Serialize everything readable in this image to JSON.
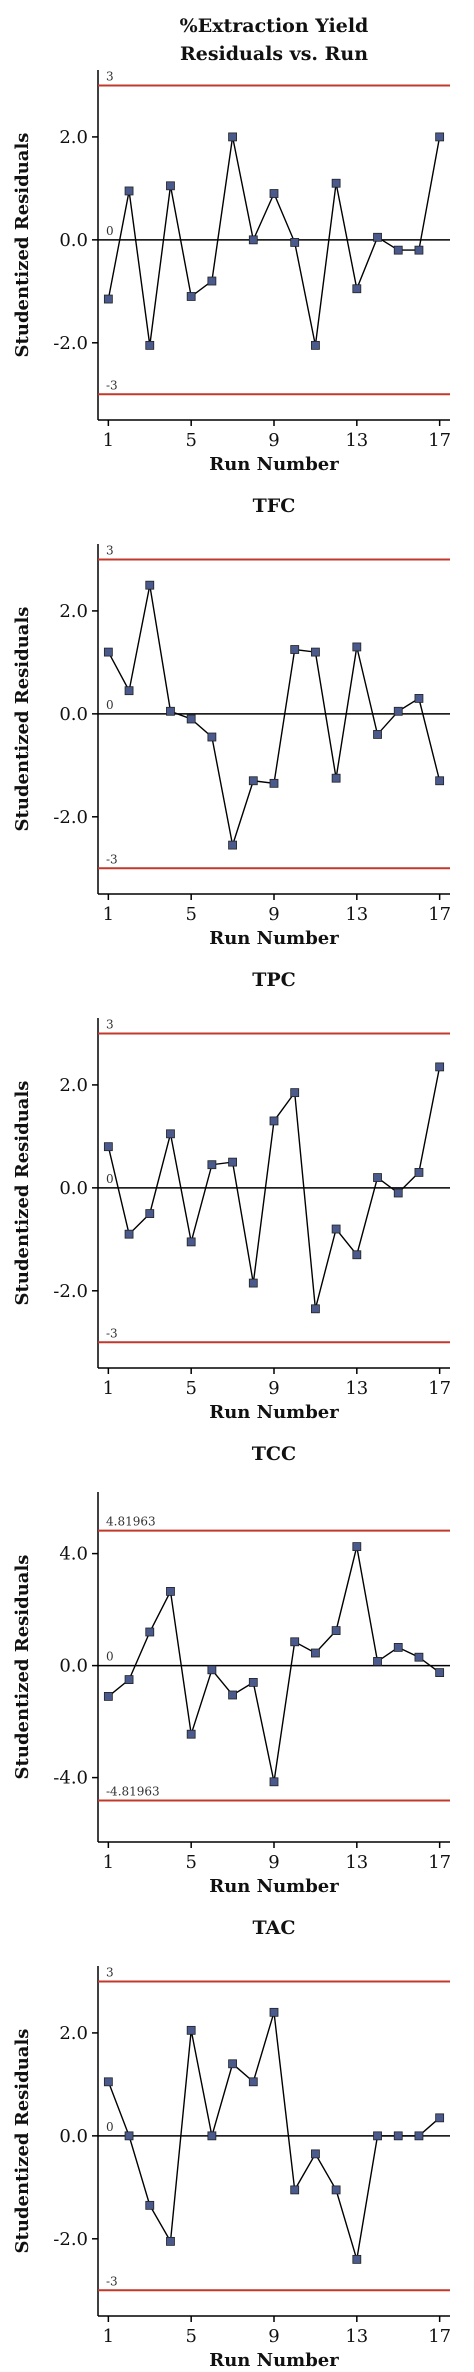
{
  "colors": {
    "limit_line": "#c0392b",
    "zero_line": "#000000",
    "series_line": "#000000",
    "marker_fill": "#4a5a8c",
    "axis": "#000000"
  },
  "chart_data": [
    {
      "type": "line",
      "title_lines": [
        "%Extraction Yield",
        "Residuals vs. Run"
      ],
      "xlabel": "Run Number",
      "ylabel": "Studentized Residuals",
      "xlim": [
        0.5,
        17.5
      ],
      "ylim": [
        -3.5,
        3.3
      ],
      "x_ticks": [
        1,
        5,
        9,
        13,
        17
      ],
      "y_ticks": [
        2.0,
        0.0,
        -2.0
      ],
      "y_tick_labels": [
        "2.0",
        "0.0",
        "-2.0"
      ],
      "ref_lines": [
        {
          "value": 3,
          "label": "3",
          "kind": "limit"
        },
        {
          "value": 0,
          "label": "0",
          "kind": "zero"
        },
        {
          "value": -3,
          "label": "-3",
          "kind": "limit"
        }
      ],
      "x": [
        1,
        2,
        3,
        4,
        5,
        6,
        7,
        8,
        9,
        10,
        11,
        12,
        13,
        14,
        15,
        16,
        17
      ],
      "y": [
        -1.15,
        0.95,
        -2.05,
        1.05,
        -1.1,
        -0.8,
        2.0,
        0.0,
        0.9,
        -0.05,
        -2.05,
        1.1,
        -0.95,
        0.05,
        -0.2,
        -0.2,
        2.0
      ]
    },
    {
      "type": "line",
      "title_lines": [
        "TFC"
      ],
      "xlabel": "Run Number",
      "ylabel": "Studentized Residuals",
      "xlim": [
        0.5,
        17.5
      ],
      "ylim": [
        -3.5,
        3.3
      ],
      "x_ticks": [
        1,
        5,
        9,
        13,
        17
      ],
      "y_ticks": [
        2.0,
        0.0,
        -2.0
      ],
      "y_tick_labels": [
        "2.0",
        "0.0",
        "-2.0"
      ],
      "ref_lines": [
        {
          "value": 3,
          "label": "3",
          "kind": "limit"
        },
        {
          "value": 0,
          "label": "0",
          "kind": "zero"
        },
        {
          "value": -3,
          "label": "-3",
          "kind": "limit"
        }
      ],
      "x": [
        1,
        2,
        3,
        4,
        5,
        6,
        7,
        8,
        9,
        10,
        11,
        12,
        13,
        14,
        15,
        16,
        17
      ],
      "y": [
        1.2,
        0.45,
        2.5,
        0.05,
        -0.1,
        -0.45,
        -2.55,
        -1.3,
        -1.35,
        1.25,
        1.2,
        -1.25,
        1.3,
        -0.4,
        0.05,
        0.3,
        -1.3
      ]
    },
    {
      "type": "line",
      "title_lines": [
        "TPC"
      ],
      "xlabel": "Run Number",
      "ylabel": "Studentized Residuals",
      "xlim": [
        0.5,
        17.5
      ],
      "ylim": [
        -3.5,
        3.3
      ],
      "x_ticks": [
        1,
        5,
        9,
        13,
        17
      ],
      "y_ticks": [
        2.0,
        0.0,
        -2.0
      ],
      "y_tick_labels": [
        "2.0",
        "0.0",
        "-2.0"
      ],
      "ref_lines": [
        {
          "value": 3,
          "label": "3",
          "kind": "limit"
        },
        {
          "value": 0,
          "label": "0",
          "kind": "zero"
        },
        {
          "value": -3,
          "label": "-3",
          "kind": "limit"
        }
      ],
      "x": [
        1,
        2,
        3,
        4,
        5,
        6,
        7,
        8,
        9,
        10,
        11,
        12,
        13,
        14,
        15,
        16,
        17
      ],
      "y": [
        0.8,
        -0.9,
        -0.5,
        1.05,
        -1.05,
        0.45,
        0.5,
        -1.85,
        1.3,
        1.85,
        -2.35,
        -0.8,
        -1.3,
        0.2,
        -0.1,
        0.3,
        2.35
      ]
    },
    {
      "type": "line",
      "title_lines": [
        "TCC"
      ],
      "xlabel": "Run Number",
      "ylabel": "Studentized Residuals",
      "xlim": [
        0.5,
        17.5
      ],
      "ylim": [
        -6.3,
        6.2
      ],
      "x_ticks": [
        1,
        5,
        9,
        13,
        17
      ],
      "y_ticks": [
        4.0,
        0.0,
        -4.0
      ],
      "y_tick_labels": [
        "4.0",
        "0.0",
        "-4.0"
      ],
      "ref_lines": [
        {
          "value": 4.81963,
          "label": "4.81963",
          "kind": "limit"
        },
        {
          "value": 0,
          "label": "0",
          "kind": "zero"
        },
        {
          "value": -4.81963,
          "label": "-4.81963",
          "kind": "limit"
        }
      ],
      "x": [
        1,
        2,
        3,
        4,
        5,
        6,
        7,
        8,
        9,
        10,
        11,
        12,
        13,
        14,
        15,
        16,
        17
      ],
      "y": [
        -1.1,
        -0.5,
        1.2,
        2.65,
        -2.45,
        -0.15,
        -1.05,
        -0.6,
        -4.15,
        0.85,
        0.45,
        1.25,
        4.25,
        0.15,
        0.65,
        0.3,
        -0.25
      ]
    },
    {
      "type": "line",
      "title_lines": [
        "TAC"
      ],
      "xlabel": "Run Number",
      "ylabel": "Studentized Residuals",
      "xlim": [
        0.5,
        17.5
      ],
      "ylim": [
        -3.5,
        3.3
      ],
      "x_ticks": [
        1,
        5,
        9,
        13,
        17
      ],
      "y_ticks": [
        2.0,
        0.0,
        -2.0
      ],
      "y_tick_labels": [
        "2.0",
        "0.0",
        "-2.0"
      ],
      "ref_lines": [
        {
          "value": 3,
          "label": "3",
          "kind": "limit"
        },
        {
          "value": 0,
          "label": "0",
          "kind": "zero"
        },
        {
          "value": -3,
          "label": "-3",
          "kind": "limit"
        }
      ],
      "x": [
        1,
        2,
        3,
        4,
        5,
        6,
        7,
        8,
        9,
        10,
        11,
        12,
        13,
        14,
        15,
        16,
        17
      ],
      "y": [
        1.05,
        0.0,
        -1.35,
        -2.05,
        2.05,
        0.0,
        1.4,
        1.05,
        2.4,
        -1.05,
        -0.35,
        -1.05,
        -2.4,
        0.0,
        0.0,
        0.0,
        0.35
      ]
    }
  ]
}
